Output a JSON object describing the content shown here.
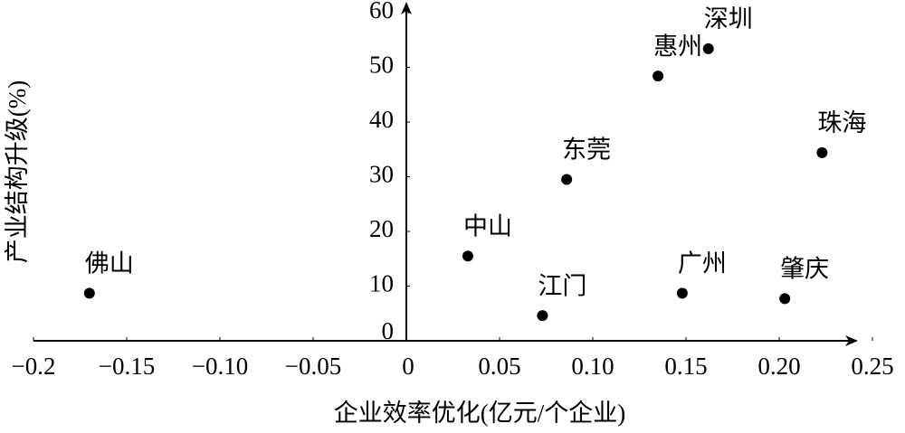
{
  "chart_data": {
    "type": "scatter",
    "x_label": "企业效率优化(亿元/个企业)",
    "y_label": "产业结构升级(%)",
    "point_labels": [
      "佛山",
      "中山",
      "江门",
      "东莞",
      "惠州",
      "深圳",
      "广州",
      "肇庆",
      "珠海"
    ],
    "x": [
      -0.17,
      0.033,
      0.073,
      0.086,
      0.135,
      0.162,
      0.148,
      0.203,
      0.223
    ],
    "values": [
      8.7,
      15.5,
      4.6,
      29.5,
      48.4,
      53.4,
      8.7,
      7.7,
      34.4
    ],
    "color": "#000000",
    "xlim": [
      -0.2,
      0.25
    ],
    "xticks": [
      {
        "value": -0.2,
        "label": "−0.2"
      },
      {
        "value": -0.15,
        "label": "−0.15"
      },
      {
        "value": -0.1,
        "label": "−0.10"
      },
      {
        "value": -0.05,
        "label": "−0.05"
      },
      0,
      0.05,
      {
        "value": 0.1,
        "label": "0.10"
      },
      0.15,
      {
        "value": 0.2,
        "label": "0.20"
      },
      0.25
    ],
    "ylim": [
      0,
      60
    ],
    "yticks": [
      0,
      10,
      20,
      30,
      40,
      50,
      60
    ]
  }
}
